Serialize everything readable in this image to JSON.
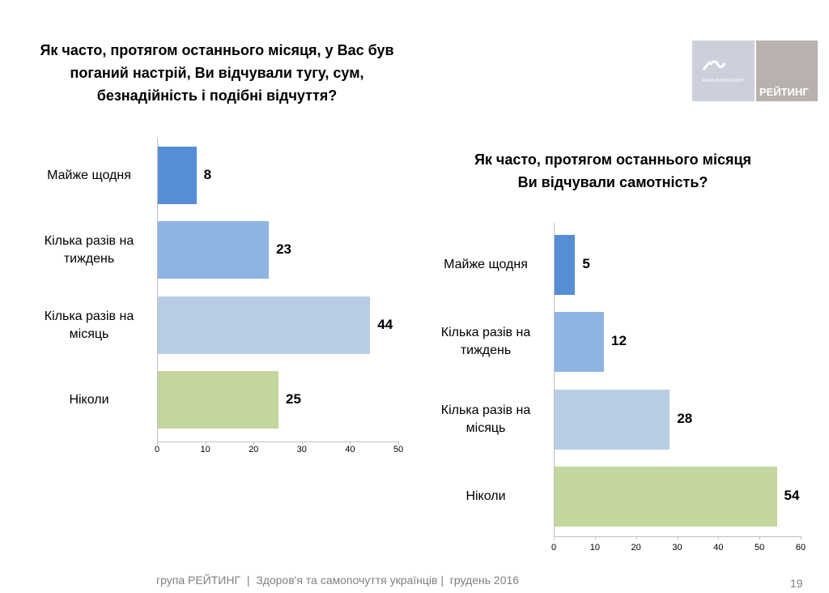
{
  "logos": {
    "aarhus": "AARHUS UNIVERSITY",
    "rating": "РЕЙТИНГ"
  },
  "footer": {
    "text": "група РЕЙТИНГ  |  Здоров'я та самопочуття українців |  грудень 2016",
    "page": "19"
  },
  "colors": [
    "#558ed5",
    "#8eb4e3",
    "#b9cde5",
    "#c3d69b"
  ],
  "chart_data": [
    {
      "type": "bar",
      "orientation": "horizontal",
      "title_lines": [
        "Як часто, протягом останнього місяця, у Вас був",
        "поганий настрій, Ви відчували тугу, сум,",
        "безнадійність і подібні відчуття?"
      ],
      "categories": [
        "Майже щодня",
        "Кілька разів на тиждень",
        "Кілька разів на місяць",
        "Ніколи"
      ],
      "category_lines": [
        [
          "Майже щодня"
        ],
        [
          "Кілька разів на",
          "тиждень"
        ],
        [
          "Кілька разів на",
          "місяць"
        ],
        [
          "Ніколи"
        ]
      ],
      "values": [
        8,
        23,
        44,
        25
      ],
      "xlim": [
        0,
        50
      ],
      "ticks": [
        0,
        10,
        20,
        30,
        40,
        50
      ]
    },
    {
      "type": "bar",
      "orientation": "horizontal",
      "title_lines": [
        "Як часто, протягом останнього місяця",
        "Ви відчували самотність?"
      ],
      "categories": [
        "Майже щодня",
        "Кілька разів на тиждень",
        "Кілька разів на місяць",
        "Ніколи"
      ],
      "category_lines": [
        [
          "Майже щодня"
        ],
        [
          "Кілька разів на",
          "тиждень"
        ],
        [
          "Кілька разів на",
          "місяць"
        ],
        [
          "Ніколи"
        ]
      ],
      "values": [
        5,
        12,
        28,
        54
      ],
      "xlim": [
        0,
        60
      ],
      "ticks": [
        0,
        10,
        20,
        30,
        40,
        50,
        60
      ]
    }
  ]
}
